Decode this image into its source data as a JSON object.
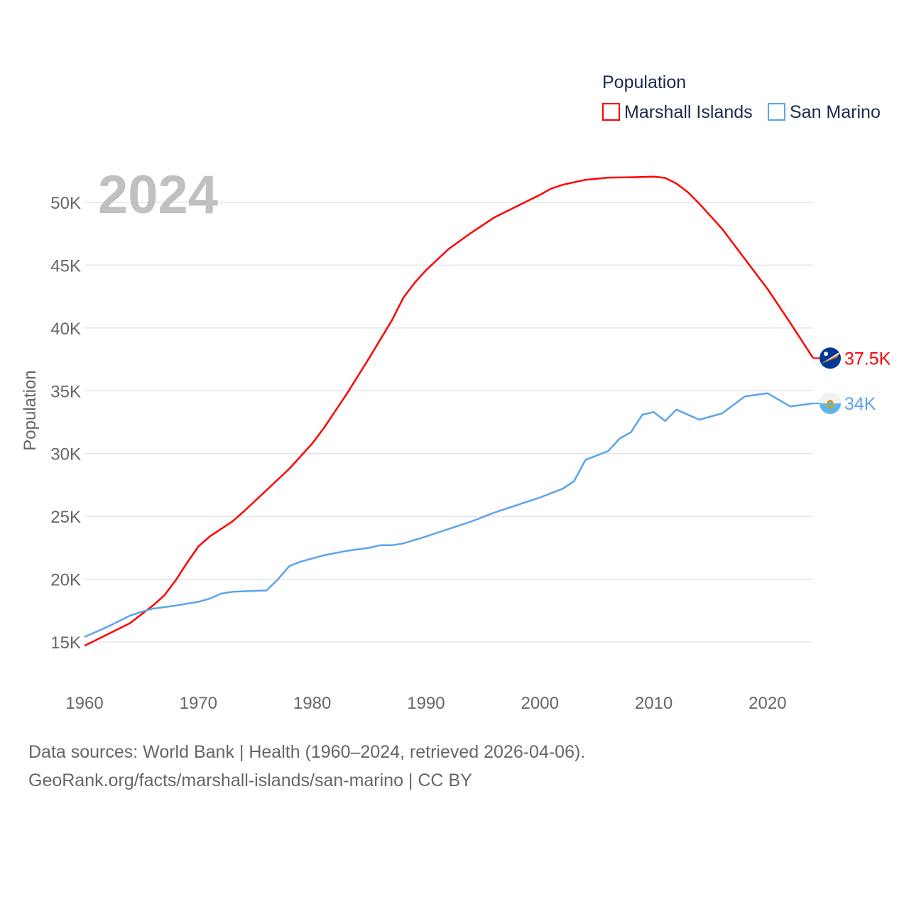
{
  "chart_data": {
    "type": "line",
    "year_label": "2024",
    "ylabel": "Population",
    "xlabel": "",
    "xlim": [
      1960,
      2024
    ],
    "ylim": [
      12500,
      52500
    ],
    "x_ticks": [
      1960,
      1970,
      1980,
      1990,
      2000,
      2010,
      2020
    ],
    "y_ticks": [
      15000,
      20000,
      25000,
      30000,
      35000,
      40000,
      45000,
      50000
    ],
    "y_tick_labels": [
      "15K",
      "20K",
      "25K",
      "30K",
      "35K",
      "40K",
      "45K",
      "50K"
    ],
    "grid": true,
    "legend": {
      "title": "Population",
      "position": "top-right"
    },
    "series": [
      {
        "name": "Marshall Islands",
        "color": "#ff0000",
        "end_label": "37.5K",
        "flag_icon": "marshall-islands-flag-icon",
        "points": [
          [
            1960,
            14700
          ],
          [
            1962,
            15600
          ],
          [
            1964,
            16500
          ],
          [
            1966,
            17900
          ],
          [
            1967,
            18700
          ],
          [
            1968,
            19900
          ],
          [
            1969,
            21300
          ],
          [
            1970,
            22600
          ],
          [
            1971,
            23400
          ],
          [
            1973,
            24600
          ],
          [
            1974,
            25400
          ],
          [
            1976,
            27100
          ],
          [
            1978,
            28800
          ],
          [
            1980,
            30800
          ],
          [
            1981,
            32000
          ],
          [
            1983,
            34700
          ],
          [
            1985,
            37600
          ],
          [
            1987,
            40600
          ],
          [
            1988,
            42400
          ],
          [
            1989,
            43600
          ],
          [
            1990,
            44600
          ],
          [
            1992,
            46300
          ],
          [
            1994,
            47600
          ],
          [
            1996,
            48800
          ],
          [
            1998,
            49700
          ],
          [
            2000,
            50600
          ],
          [
            2001,
            51100
          ],
          [
            2002,
            51400
          ],
          [
            2004,
            51800
          ],
          [
            2006,
            51970
          ],
          [
            2008,
            52000
          ],
          [
            2010,
            52050
          ],
          [
            2011,
            51950
          ],
          [
            2012,
            51500
          ],
          [
            2013,
            50800
          ],
          [
            2014,
            49900
          ],
          [
            2016,
            47900
          ],
          [
            2018,
            45500
          ],
          [
            2020,
            43100
          ],
          [
            2022,
            40400
          ],
          [
            2024,
            37600
          ]
        ]
      },
      {
        "name": "San Marino",
        "color": "#5ba4ec",
        "end_label": "34K",
        "flag_icon": "san-marino-flag-icon",
        "points": [
          [
            1960,
            15400
          ],
          [
            1962,
            16200
          ],
          [
            1964,
            17100
          ],
          [
            1965,
            17400
          ],
          [
            1966,
            17650
          ],
          [
            1968,
            17900
          ],
          [
            1970,
            18200
          ],
          [
            1971,
            18450
          ],
          [
            1972,
            18850
          ],
          [
            1973,
            19000
          ],
          [
            1975,
            19070
          ],
          [
            1976,
            19100
          ],
          [
            1977,
            20000
          ],
          [
            1978,
            21050
          ],
          [
            1979,
            21400
          ],
          [
            1981,
            21900
          ],
          [
            1983,
            22250
          ],
          [
            1985,
            22500
          ],
          [
            1986,
            22700
          ],
          [
            1987,
            22700
          ],
          [
            1988,
            22850
          ],
          [
            1990,
            23400
          ],
          [
            1992,
            24000
          ],
          [
            1994,
            24600
          ],
          [
            1996,
            25300
          ],
          [
            1998,
            25900
          ],
          [
            2000,
            26500
          ],
          [
            2002,
            27200
          ],
          [
            2003,
            27800
          ],
          [
            2004,
            29500
          ],
          [
            2006,
            30200
          ],
          [
            2007,
            31200
          ],
          [
            2008,
            31700
          ],
          [
            2009,
            33100
          ],
          [
            2010,
            33300
          ],
          [
            2011,
            32600
          ],
          [
            2012,
            33500
          ],
          [
            2014,
            32700
          ],
          [
            2016,
            33200
          ],
          [
            2018,
            34550
          ],
          [
            2020,
            34800
          ],
          [
            2022,
            33750
          ],
          [
            2024,
            34000
          ]
        ]
      }
    ]
  },
  "footer": {
    "line1": "Data sources: World Bank | Health (1960–2024, retrieved 2026-04-06).",
    "line2": "GeoRank.org/facts/marshall-islands/san-marino | CC BY"
  }
}
